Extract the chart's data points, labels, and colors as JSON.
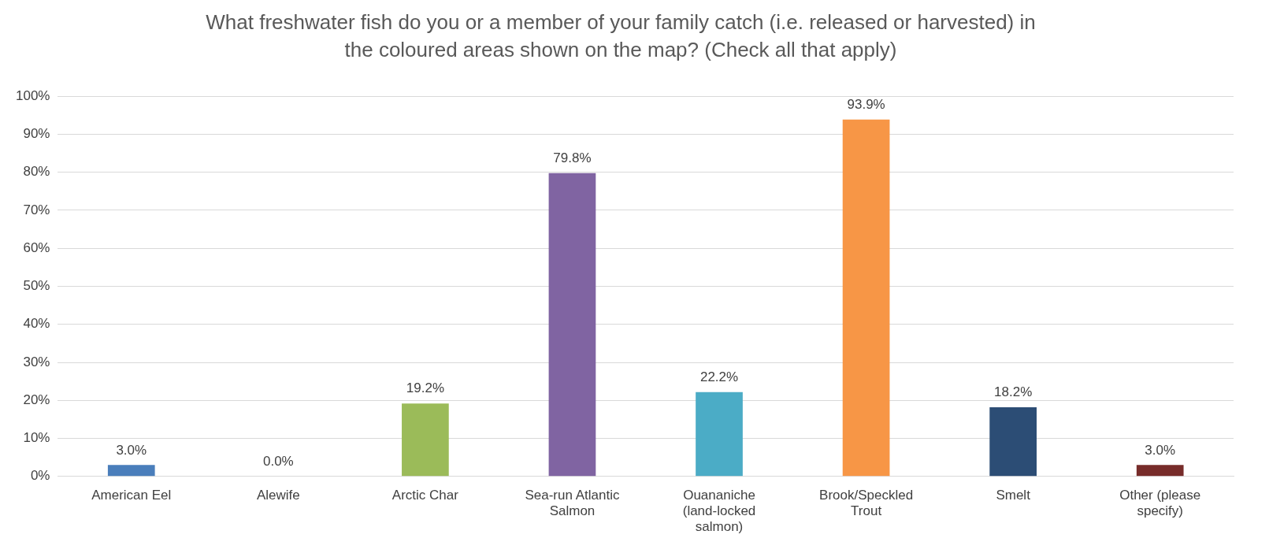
{
  "chart_data": {
    "type": "bar",
    "title": "What freshwater fish do you or a member of your family catch (i.e. released or harvested) in the coloured areas shown on the map? (Check all that apply)",
    "categories": [
      "American Eel",
      "Alewife",
      "Arctic Char",
      "Sea-run Atlantic Salmon",
      "Ouananiche (land-locked salmon)",
      "Brook/Speckled Trout",
      "Smelt",
      "Other (please specify)"
    ],
    "values": [
      3.0,
      0.0,
      19.2,
      79.8,
      22.2,
      93.9,
      18.2,
      3.0
    ],
    "colors": [
      "#4a7ebb",
      "#c0504d",
      "#9bbb59",
      "#8064a2",
      "#4bacc6",
      "#f79646",
      "#2c4d75",
      "#772c2a"
    ],
    "value_labels": [
      "3.0%",
      "0.0%",
      "19.2%",
      "79.8%",
      "22.2%",
      "93.9%",
      "18.2%",
      "3.0%"
    ],
    "ylim": [
      0,
      100
    ],
    "yticks": [
      {
        "value": 0,
        "label": "0%"
      },
      {
        "value": 10,
        "label": "10%"
      },
      {
        "value": 20,
        "label": "20%"
      },
      {
        "value": 30,
        "label": "30%"
      },
      {
        "value": 40,
        "label": "40%"
      },
      {
        "value": 50,
        "label": "50%"
      },
      {
        "value": 60,
        "label": "60%"
      },
      {
        "value": 70,
        "label": "70%"
      },
      {
        "value": 80,
        "label": "80%"
      },
      {
        "value": 90,
        "label": "90%"
      },
      {
        "value": 100,
        "label": "100%"
      }
    ],
    "grid": "y"
  }
}
